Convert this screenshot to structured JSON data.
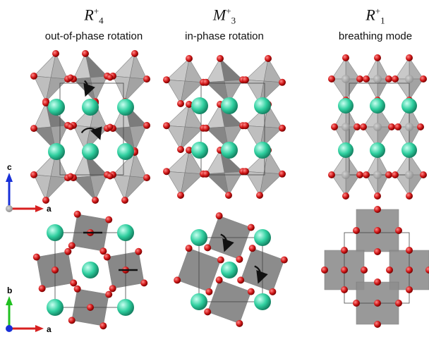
{
  "panels": [
    {
      "symbol": "R",
      "sup": "+",
      "sub": "4",
      "caption": "out-of-phase rotation"
    },
    {
      "symbol": "M",
      "sup": "+",
      "sub": "3",
      "caption": "in-phase rotation"
    },
    {
      "symbol": "R",
      "sup": "+",
      "sub": "1",
      "caption": "breathing mode"
    }
  ],
  "axes_side": {
    "vertical": "c",
    "horizontal": "a"
  },
  "axes_top": {
    "vertical": "b",
    "horizontal": "a"
  },
  "colors": {
    "oxygen": "#d01818",
    "a_site": "#2fcf9f",
    "octahedron": "#9a9a9a",
    "axis_c": "#1830d8",
    "axis_a": "#d82020",
    "axis_b": "#20c020"
  }
}
